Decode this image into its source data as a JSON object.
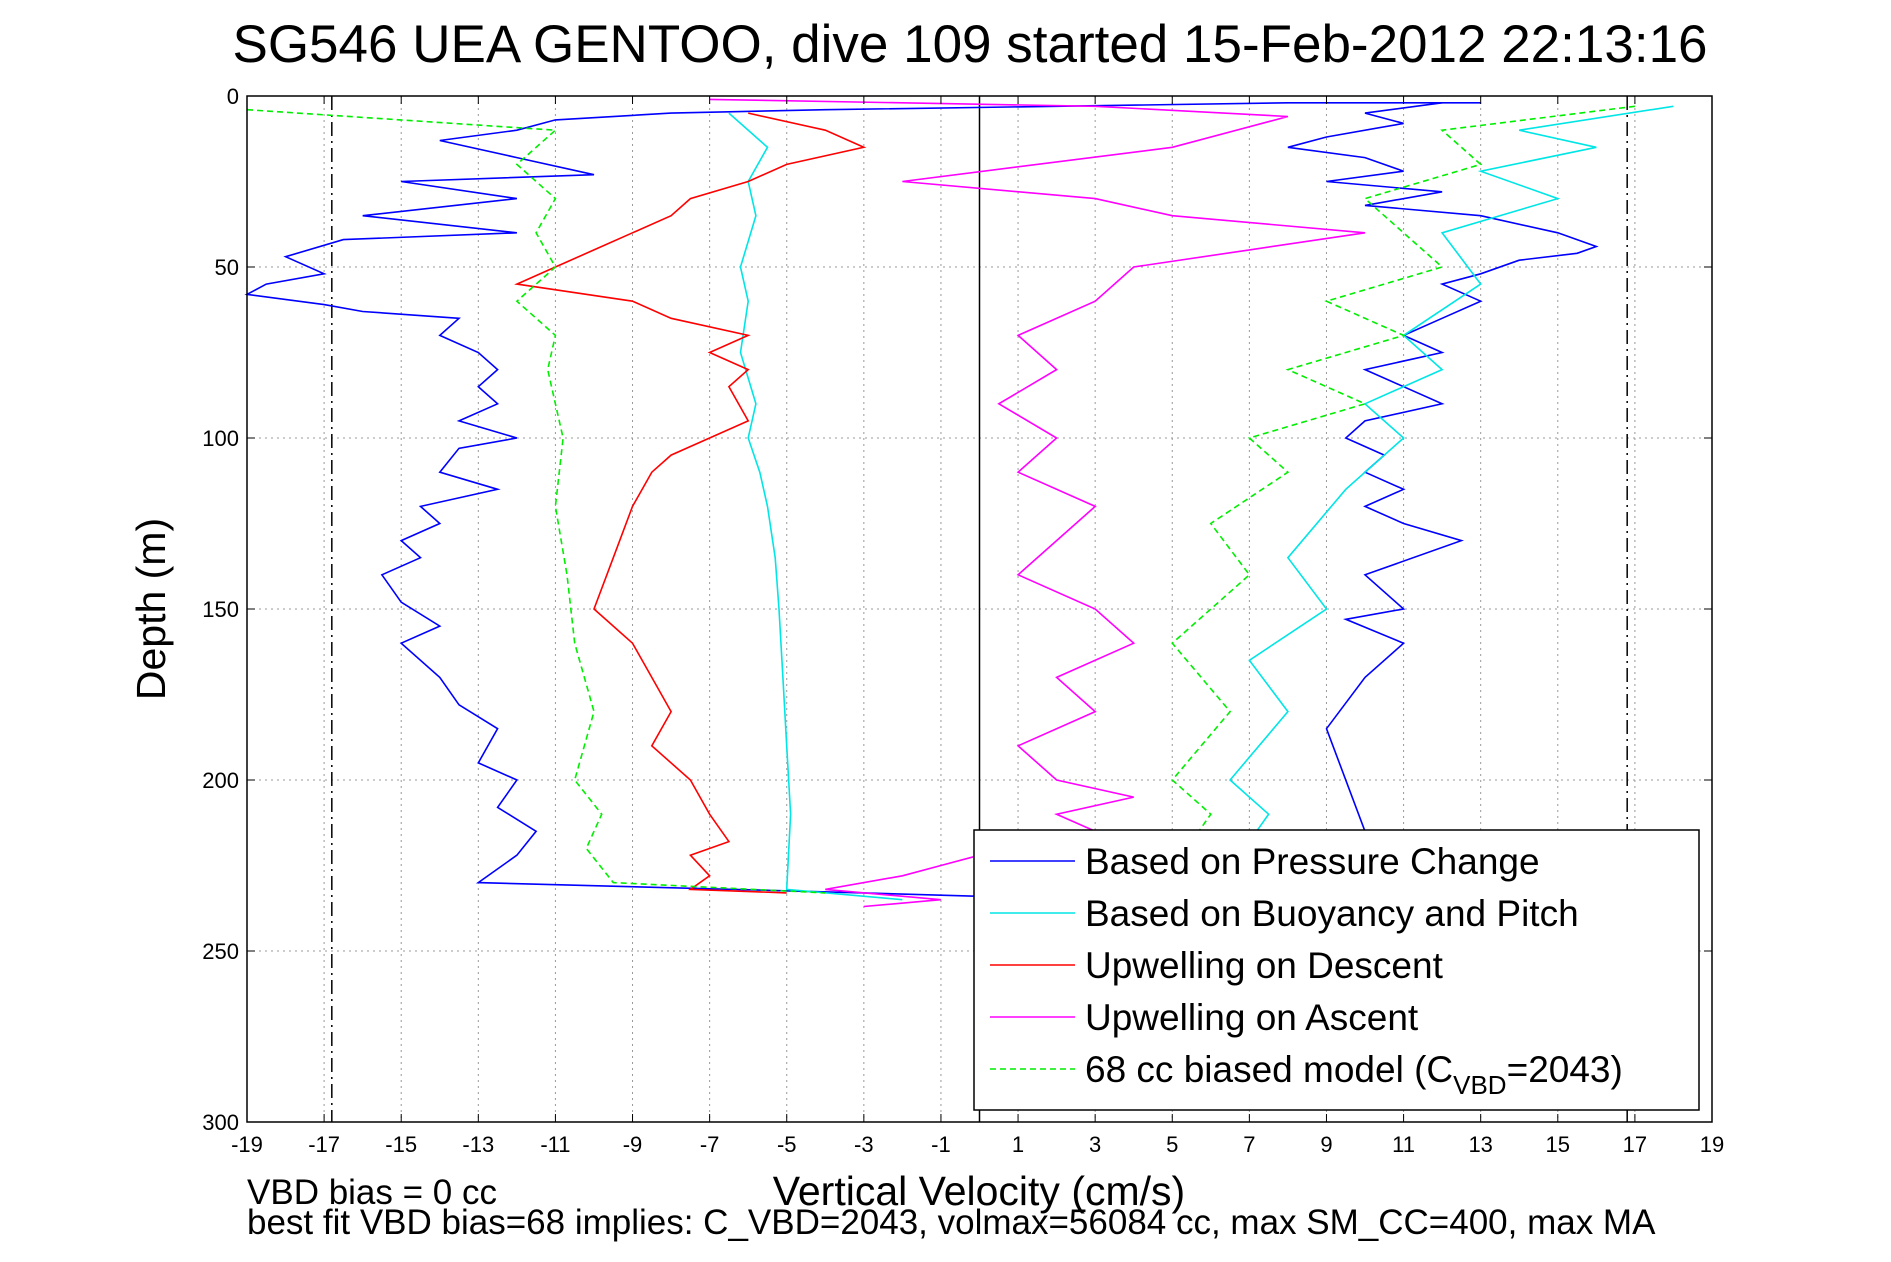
{
  "chart_data": {
    "type": "line",
    "title": "SG546 UEA GENTOO, dive 109 started 15-Feb-2012 22:13:16",
    "xlabel": "Vertical Velocity (cm/s)",
    "ylabel": "Depth (m)",
    "xlim": [
      -19,
      19
    ],
    "ylim": [
      0,
      300
    ],
    "y_reversed": true,
    "x_ticks": [
      -19,
      -17,
      -15,
      -13,
      -11,
      -9,
      -7,
      -5,
      -3,
      -1,
      1,
      3,
      5,
      7,
      9,
      11,
      13,
      15,
      17,
      19
    ],
    "y_ticks": [
      0,
      50,
      100,
      150,
      200,
      250,
      300
    ],
    "grid": true,
    "legend_placement": "bottom-right",
    "vertical_lines": [
      {
        "x": -16.8,
        "style": "dash-dot",
        "color": "#000000"
      },
      {
        "x": 0,
        "style": "solid",
        "color": "#000000"
      },
      {
        "x": 16.8,
        "style": "dash-dot",
        "color": "#000000"
      }
    ],
    "series": [
      {
        "name": "Based on Pressure Change",
        "color": "#0000ff",
        "style": "solid",
        "legend": "Based on Pressure Change",
        "segments": [
          {
            "x": [
              13,
              8,
              2,
              -4,
              -8,
              -11,
              -12,
              -14,
              -12,
              -10,
              -15,
              -12,
              -16,
              -12,
              -16.5,
              -18,
              -17,
              -18.5,
              -19,
              -17,
              -16,
              -13.5,
              -14,
              -13,
              -12.5,
              -13,
              -12.5,
              -13.5,
              -12,
              -13.5,
              -14,
              -12.5,
              -14.5,
              -14,
              -15,
              -14.5,
              -15.5,
              -15,
              -14,
              -15,
              -14,
              -13.5,
              -12.5,
              -13,
              -12,
              -12.5,
              -11.5,
              -12,
              -13,
              -3,
              0
            ],
            "y": [
              2,
              2,
              3,
              4,
              5,
              7,
              10,
              13,
              18,
              23,
              25,
              30,
              35,
              40,
              42,
              47,
              52,
              55,
              58,
              61,
              63,
              65,
              70,
              75,
              80,
              85,
              90,
              95,
              100,
              103,
              110,
              115,
              120,
              125,
              130,
              135,
              140,
              148,
              155,
              160,
              170,
              178,
              185,
              195,
              200,
              208,
              215,
              222,
              230,
              233,
              234
            ]
          },
          {
            "x": [
              12,
              10,
              11,
              9,
              8,
              10,
              11,
              9,
              12,
              10,
              13,
              15,
              16,
              15.5,
              14,
              13,
              12,
              13,
              12,
              11,
              12,
              10,
              11,
              12,
              10,
              9.5,
              10.5,
              10,
              11,
              10,
              11,
              12.5,
              10,
              11,
              9.5,
              11,
              10,
              9,
              10
            ],
            "y": [
              2,
              5,
              8,
              12,
              15,
              18,
              22,
              25,
              28,
              32,
              35,
              40,
              44,
              46,
              48,
              52,
              55,
              60,
              65,
              70,
              75,
              80,
              85,
              90,
              95,
              100,
              105,
              110,
              115,
              120,
              125,
              130,
              140,
              150,
              153,
              160,
              170,
              185,
              215
            ]
          }
        ]
      },
      {
        "name": "Based on Buoyancy and Pitch",
        "color": "#00e5e5",
        "style": "solid",
        "legend": "Based on Buoyancy and Pitch",
        "segments": [
          {
            "x": [
              -6.5,
              -5.5,
              -6,
              -5.8,
              -6.2,
              -6,
              -6.2,
              -5.8,
              -6,
              -5.7,
              -5.5,
              -5.3,
              -5.2,
              -5.1,
              -5,
              -4.9,
              -5,
              -2
            ],
            "y": [
              5,
              15,
              25,
              35,
              50,
              60,
              75,
              90,
              100,
              110,
              120,
              135,
              150,
              170,
              190,
              210,
              232,
              235
            ]
          },
          {
            "x": [
              18,
              14,
              16,
              13,
              15,
              12,
              13,
              11,
              12,
              10,
              11,
              9.5,
              8,
              9,
              7,
              8,
              6.5,
              7.5,
              7
            ],
            "y": [
              3,
              10,
              15,
              22,
              30,
              40,
              55,
              70,
              80,
              90,
              100,
              115,
              135,
              150,
              165,
              180,
              200,
              210,
              218
            ]
          }
        ]
      },
      {
        "name": "Upwelling on Descent",
        "color": "#ff0000",
        "style": "solid",
        "legend": "Upwelling on Descent",
        "segments": [
          {
            "x": [
              -6,
              -4,
              -3,
              -5,
              -6,
              -7.5,
              -8,
              -9,
              -10,
              -11,
              -12,
              -9,
              -8,
              -6,
              -7,
              -6,
              -6.5,
              -6,
              -7,
              -8,
              -8.5,
              -9,
              -9.5,
              -10,
              -9,
              -8.5,
              -8,
              -8.5,
              -7.5,
              -7,
              -6.5,
              -7.5,
              -7,
              -7.5,
              -5
            ],
            "y": [
              5,
              10,
              15,
              20,
              25,
              30,
              35,
              40,
              45,
              50,
              55,
              60,
              65,
              70,
              75,
              80,
              85,
              95,
              100,
              105,
              110,
              120,
              135,
              150,
              160,
              170,
              180,
              190,
              200,
              210,
              218,
              222,
              228,
              232,
              233
            ]
          }
        ]
      },
      {
        "name": "Upwelling on Ascent",
        "color": "#ff00ff",
        "style": "solid",
        "legend": "Upwelling on Ascent",
        "segments": [
          {
            "x": [
              -7,
              3,
              8,
              5,
              -2,
              3,
              5,
              10,
              7,
              4,
              3,
              1,
              2,
              0.5,
              2,
              1,
              3,
              2,
              1,
              3,
              4,
              2,
              3,
              1,
              2,
              4,
              2,
              3,
              1,
              0,
              -1,
              -2,
              -4,
              -1,
              -3
            ],
            "y": [
              1,
              3,
              6,
              15,
              25,
              30,
              35,
              40,
              45,
              50,
              60,
              70,
              80,
              90,
              100,
              110,
              120,
              130,
              140,
              150,
              160,
              170,
              180,
              190,
              200,
              205,
              210,
              215,
              220,
              222,
              225,
              228,
              232,
              235,
              237
            ]
          }
        ]
      },
      {
        "name": "68 cc biased model (C_VBD=2043)",
        "color": "#00ee00",
        "style": "dashed",
        "legend": "68 cc biased model (C",
        "legend_sub": "VBD",
        "legend_tail": "=2043)",
        "segments": [
          {
            "x": [
              -19,
              -11,
              -12,
              -11,
              -11.5,
              -11,
              -12,
              -11,
              -11.2,
              -10.8,
              -11,
              -10.7,
              -10.5,
              -10,
              -10.5,
              -9.8,
              -10.2,
              -9.5,
              -4
            ],
            "y": [
              4,
              10,
              20,
              30,
              40,
              50,
              60,
              70,
              80,
              100,
              120,
              140,
              160,
              180,
              200,
              210,
              220,
              230,
              233
            ]
          },
          {
            "x": [
              17,
              12,
              13,
              10,
              12,
              9,
              11,
              8,
              10,
              7,
              8,
              6,
              7,
              5,
              6.5,
              5,
              6,
              5.5
            ],
            "y": [
              3,
              10,
              20,
              30,
              50,
              60,
              70,
              80,
              90,
              100,
              110,
              125,
              140,
              160,
              180,
              200,
              210,
              218
            ]
          }
        ]
      }
    ]
  },
  "notes": {
    "vbd_bias": "VBD bias = 0 cc",
    "best_fit": "best fit VBD bias=68 implies: C_VBD=2043, volmax=56084 cc, max SM_CC=400, max MA"
  }
}
